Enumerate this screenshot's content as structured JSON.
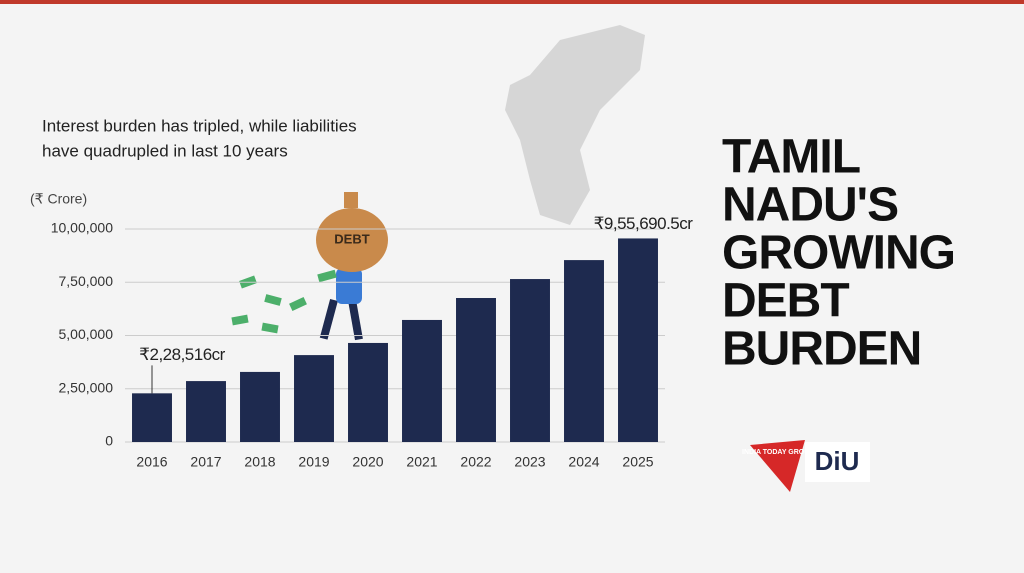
{
  "chart_data": {
    "type": "bar",
    "title_lines": [
      "TAMIL",
      "NADU'S",
      "GROWING",
      "DEBT",
      "BURDEN"
    ],
    "subtitle_lines": [
      "Interest burden has tripled, while liabilities",
      "have quadrupled in last 10 years"
    ],
    "y_label": "(₹ Crore)",
    "bag_text": "DEBT",
    "logo": {
      "group": "INDIA TODAY GROUP",
      "name": "DiU"
    },
    "categories": [
      "2016",
      "2017",
      "2018",
      "2019",
      "2020",
      "2021",
      "2022",
      "2023",
      "2024",
      "2025"
    ],
    "values": [
      228516,
      286000,
      329000,
      408000,
      465000,
      573000,
      676000,
      765000,
      854000,
      955690.5
    ],
    "value_labels": [
      "₹2,28,516cr",
      null,
      null,
      null,
      null,
      null,
      null,
      null,
      null,
      "₹9,55,690.5cr"
    ],
    "color": "#1e2a4f",
    "ylim": [
      0,
      1000000
    ],
    "yticks": [
      0,
      {
        "value": 250000,
        "label": "2,50,000"
      },
      {
        "value": 500000,
        "label": "5,00,000"
      },
      {
        "value": 750000,
        "label": "7,50,000"
      },
      {
        "value": 1000000,
        "label": "10,00,000"
      }
    ],
    "grid": true
  }
}
